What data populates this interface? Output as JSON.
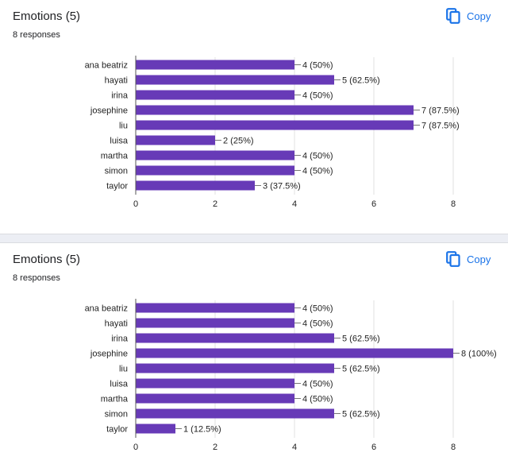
{
  "questions": [
    {
      "title": "Emotions (5)",
      "responses": "8 responses",
      "copy_label": "Copy"
    },
    {
      "title": "Emotions (5)",
      "responses": "8 responses",
      "copy_label": "Copy"
    }
  ],
  "colors": {
    "bar": "#673ab7",
    "accent": "#1a73e8",
    "grid": "#e0e0e0"
  },
  "chart_data": [
    {
      "type": "bar",
      "orientation": "horizontal",
      "categories": [
        "ana beatriz",
        "hayati",
        "irina",
        "josephine",
        "liu",
        "luisa",
        "martha",
        "simon",
        "taylor"
      ],
      "values": [
        4,
        5,
        4,
        7,
        7,
        2,
        4,
        4,
        3
      ],
      "data_labels": [
        "4 (50%)",
        "5 (62.5%)",
        "4 (50%)",
        "7 (87.5%)",
        "7 (87.5%)",
        "2 (25%)",
        "4 (50%)",
        "4 (50%)",
        "3 (37.5%)"
      ],
      "xlim": [
        0,
        8
      ],
      "xticks": [
        0,
        2,
        4,
        6,
        8
      ],
      "grid": true
    },
    {
      "type": "bar",
      "orientation": "horizontal",
      "categories": [
        "ana beatriz",
        "hayati",
        "irina",
        "josephine",
        "liu",
        "luisa",
        "martha",
        "simon",
        "taylor"
      ],
      "values": [
        4,
        4,
        5,
        8,
        5,
        4,
        4,
        5,
        1
      ],
      "data_labels": [
        "4 (50%)",
        "4 (50%)",
        "5 (62.5%)",
        "8 (100%)",
        "5 (62.5%)",
        "4 (50%)",
        "4 (50%)",
        "5 (62.5%)",
        "1 (12.5%)"
      ],
      "xlim": [
        0,
        8
      ],
      "xticks": [
        0,
        2,
        4,
        6,
        8
      ],
      "grid": true
    }
  ]
}
